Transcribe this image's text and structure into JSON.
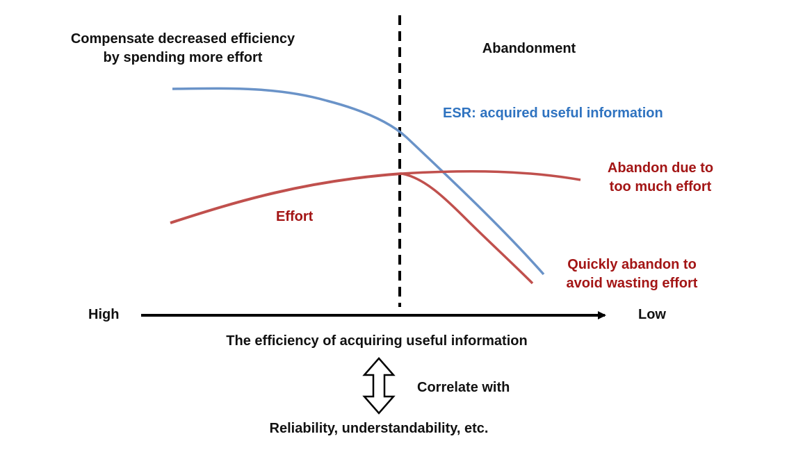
{
  "labels": {
    "left_region_line1": "Compensate decreased efficiency",
    "left_region_line2": "by spending more effort",
    "right_region": "Abandonment",
    "esr_curve": "ESR: acquired useful information",
    "abandon_effort_line1": "Abandon due to",
    "abandon_effort_line2": "too much effort",
    "effort_curve": "Effort",
    "quick_abandon_line1": "Quickly abandon to",
    "quick_abandon_line2": "avoid wasting effort",
    "axis_high": "High",
    "axis_low": "Low",
    "axis_title": "The efficiency of acquiring useful information",
    "correlate": "Correlate with",
    "correlate_target": "Reliability, understandability, etc."
  },
  "colors": {
    "esr_line": "#6a93c8",
    "effort_line": "#c0504d",
    "esr_text": "#2f73c0",
    "red_text": "#a31515",
    "axis": "#000000"
  }
}
